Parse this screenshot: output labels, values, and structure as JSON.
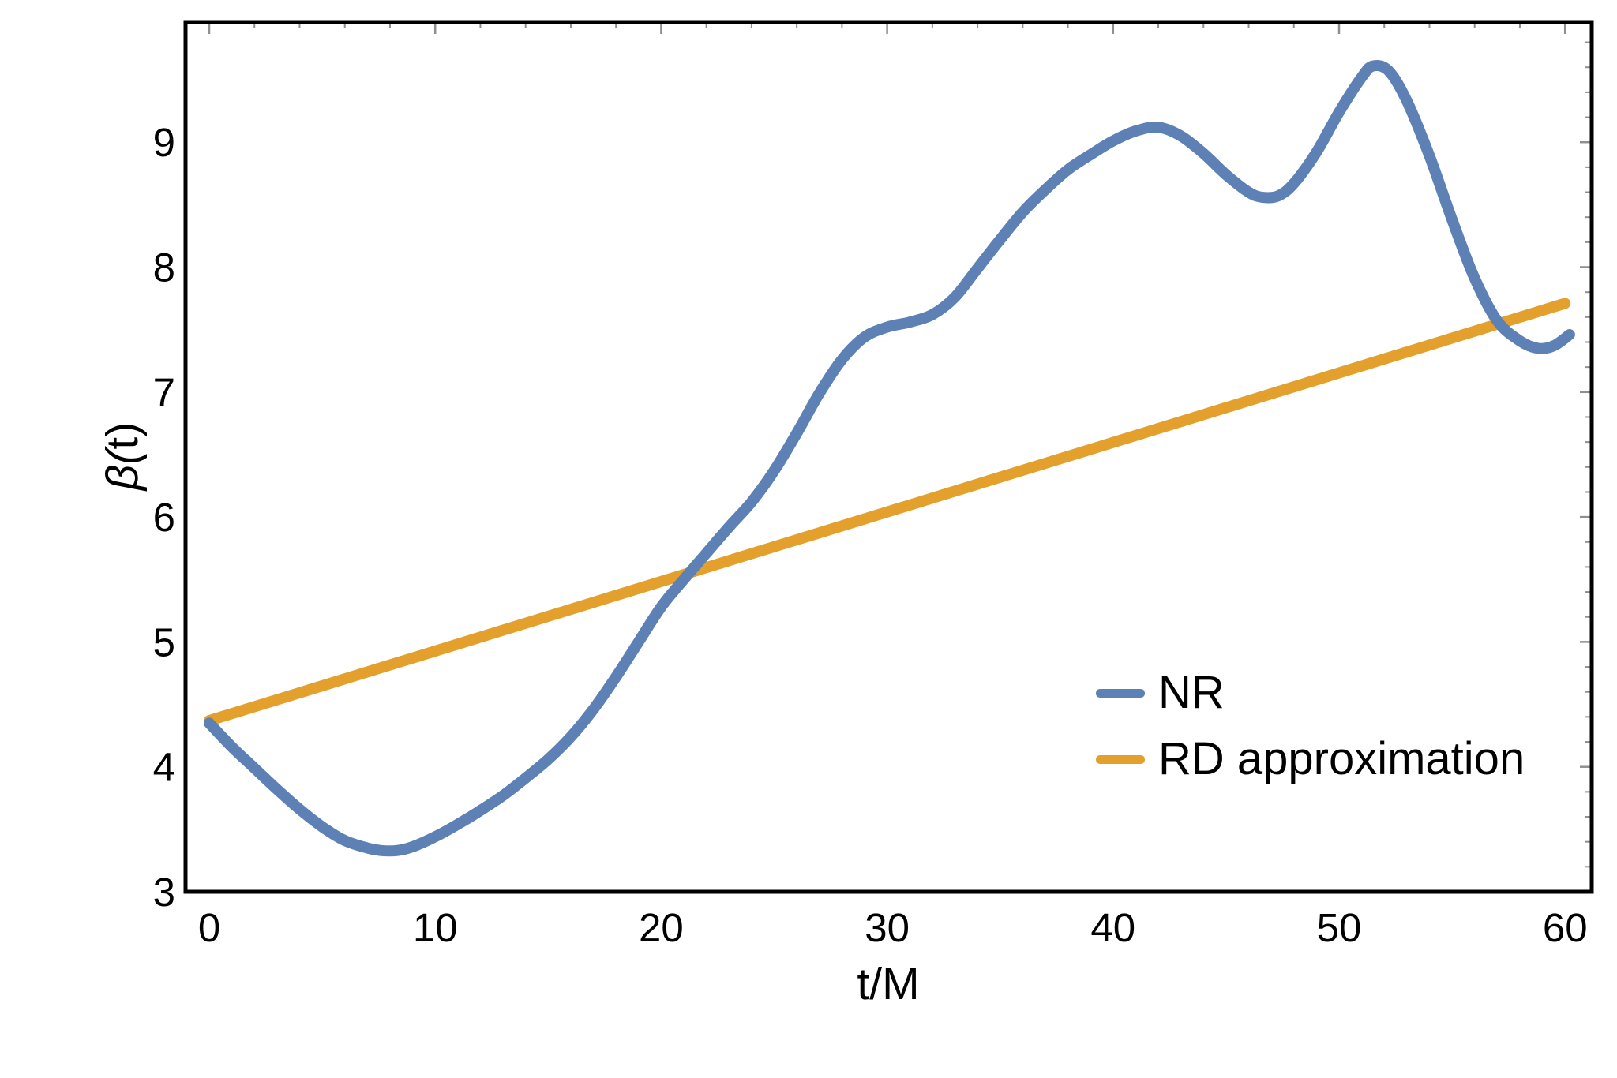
{
  "chart_data": {
    "type": "line",
    "title": "",
    "xlabel": "t/M",
    "ylabel": "β(t)",
    "xlim": [
      -1.05,
      61.2
    ],
    "ylim": [
      3,
      9.96
    ],
    "x_ticks_major": [
      0,
      10,
      20,
      30,
      40,
      50,
      60
    ],
    "x_minor_step": 2,
    "y_ticks_major": [
      3,
      4,
      5,
      6,
      7,
      8,
      9
    ],
    "y_minor_step": 0.2,
    "grid": false,
    "frame": true,
    "legend_position": "inside lower right",
    "series": [
      {
        "name": "NR",
        "color": "#5E81B5",
        "x": [
          0,
          1,
          2,
          3,
          4,
          5,
          6,
          7,
          7.6,
          8.3,
          9,
          10,
          11,
          12,
          13,
          14,
          15,
          16,
          17,
          18,
          19,
          20,
          21,
          22,
          23,
          24,
          25,
          26,
          27,
          28,
          29,
          30,
          31,
          32,
          33,
          34,
          35,
          36,
          37,
          38,
          39,
          40,
          41,
          42,
          43,
          44,
          45,
          46,
          46.6,
          47.3,
          48,
          49,
          50,
          51,
          51.5,
          52.2,
          53,
          54,
          55,
          56,
          57,
          58,
          58.8,
          59.5,
          60.2
        ],
        "y": [
          4.35,
          4.16,
          3.99,
          3.82,
          3.66,
          3.52,
          3.41,
          3.35,
          3.33,
          3.33,
          3.36,
          3.44,
          3.54,
          3.65,
          3.77,
          3.91,
          4.06,
          4.24,
          4.46,
          4.72,
          5.0,
          5.28,
          5.5,
          5.71,
          5.92,
          6.12,
          6.37,
          6.67,
          6.99,
          7.26,
          7.44,
          7.52,
          7.56,
          7.62,
          7.76,
          7.99,
          8.22,
          8.44,
          8.62,
          8.78,
          8.9,
          9.01,
          9.09,
          9.12,
          9.05,
          8.91,
          8.74,
          8.6,
          8.56,
          8.57,
          8.67,
          8.92,
          9.24,
          9.52,
          9.61,
          9.57,
          9.33,
          8.89,
          8.38,
          7.91,
          7.57,
          7.41,
          7.35,
          7.37,
          7.46
        ]
      },
      {
        "name": "RD approximation",
        "color": "#E3A02D",
        "x": [
          0,
          60
        ],
        "y": [
          4.37,
          7.71
        ]
      }
    ]
  },
  "legend": {
    "items": [
      {
        "label": "NR",
        "color": "#5E81B5"
      },
      {
        "label": "RD approximation",
        "color": "#E3A02D"
      }
    ]
  },
  "style": {
    "frame_color": "#000000",
    "tick_color": "#8f8f8f",
    "background": "#FFFFFF",
    "tick_label_size": 51,
    "curve_width": 14,
    "frame_width": 5
  }
}
